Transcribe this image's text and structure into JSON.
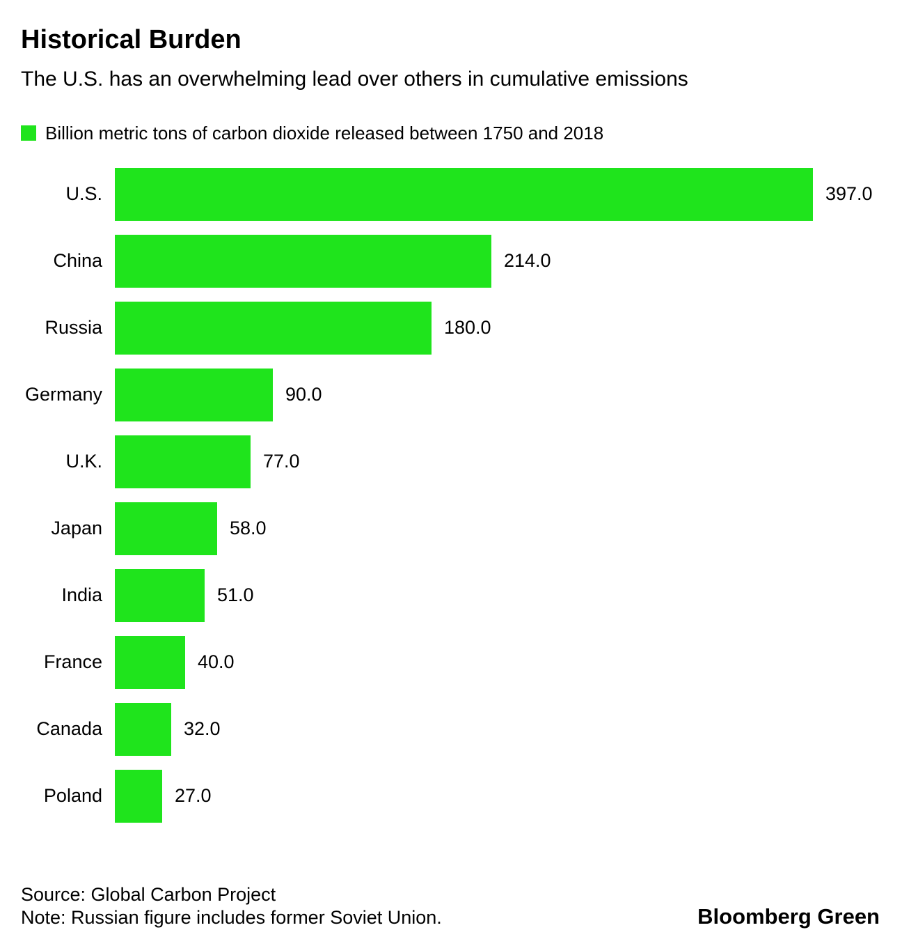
{
  "header": {
    "title": "Historical Burden",
    "subtitle": "The U.S. has an overwhelming lead over others in cumulative emissions"
  },
  "legend": {
    "label": "Billion metric tons of carbon dioxide released between 1750 and 2018",
    "color": "#1fe41c"
  },
  "chart_data": {
    "type": "bar",
    "orientation": "horizontal",
    "title": "Historical Burden",
    "subtitle": "The U.S. has an overwhelming lead over others in cumulative emissions",
    "unit": "Billion metric tons of carbon dioxide released between 1750 and 2018",
    "categories": [
      "U.S.",
      "China",
      "Russia",
      "Germany",
      "U.K.",
      "Japan",
      "India",
      "France",
      "Canada",
      "Poland"
    ],
    "values": [
      397.0,
      214.0,
      180.0,
      90.0,
      77.0,
      58.0,
      51.0,
      40.0,
      32.0,
      27.0
    ],
    "value_labels": [
      "397.0",
      "214.0",
      "180.0",
      "90.0",
      "77.0",
      "58.0",
      "51.0",
      "40.0",
      "32.0",
      "27.0"
    ],
    "xlim": [
      0,
      397
    ],
    "bar_color": "#1fe41c",
    "grid": false,
    "legend_position": "top-left"
  },
  "footer": {
    "source": "Source: Global Carbon Project",
    "note": "Note: Russian figure includes former Soviet Union.",
    "brand": "Bloomberg Green"
  }
}
